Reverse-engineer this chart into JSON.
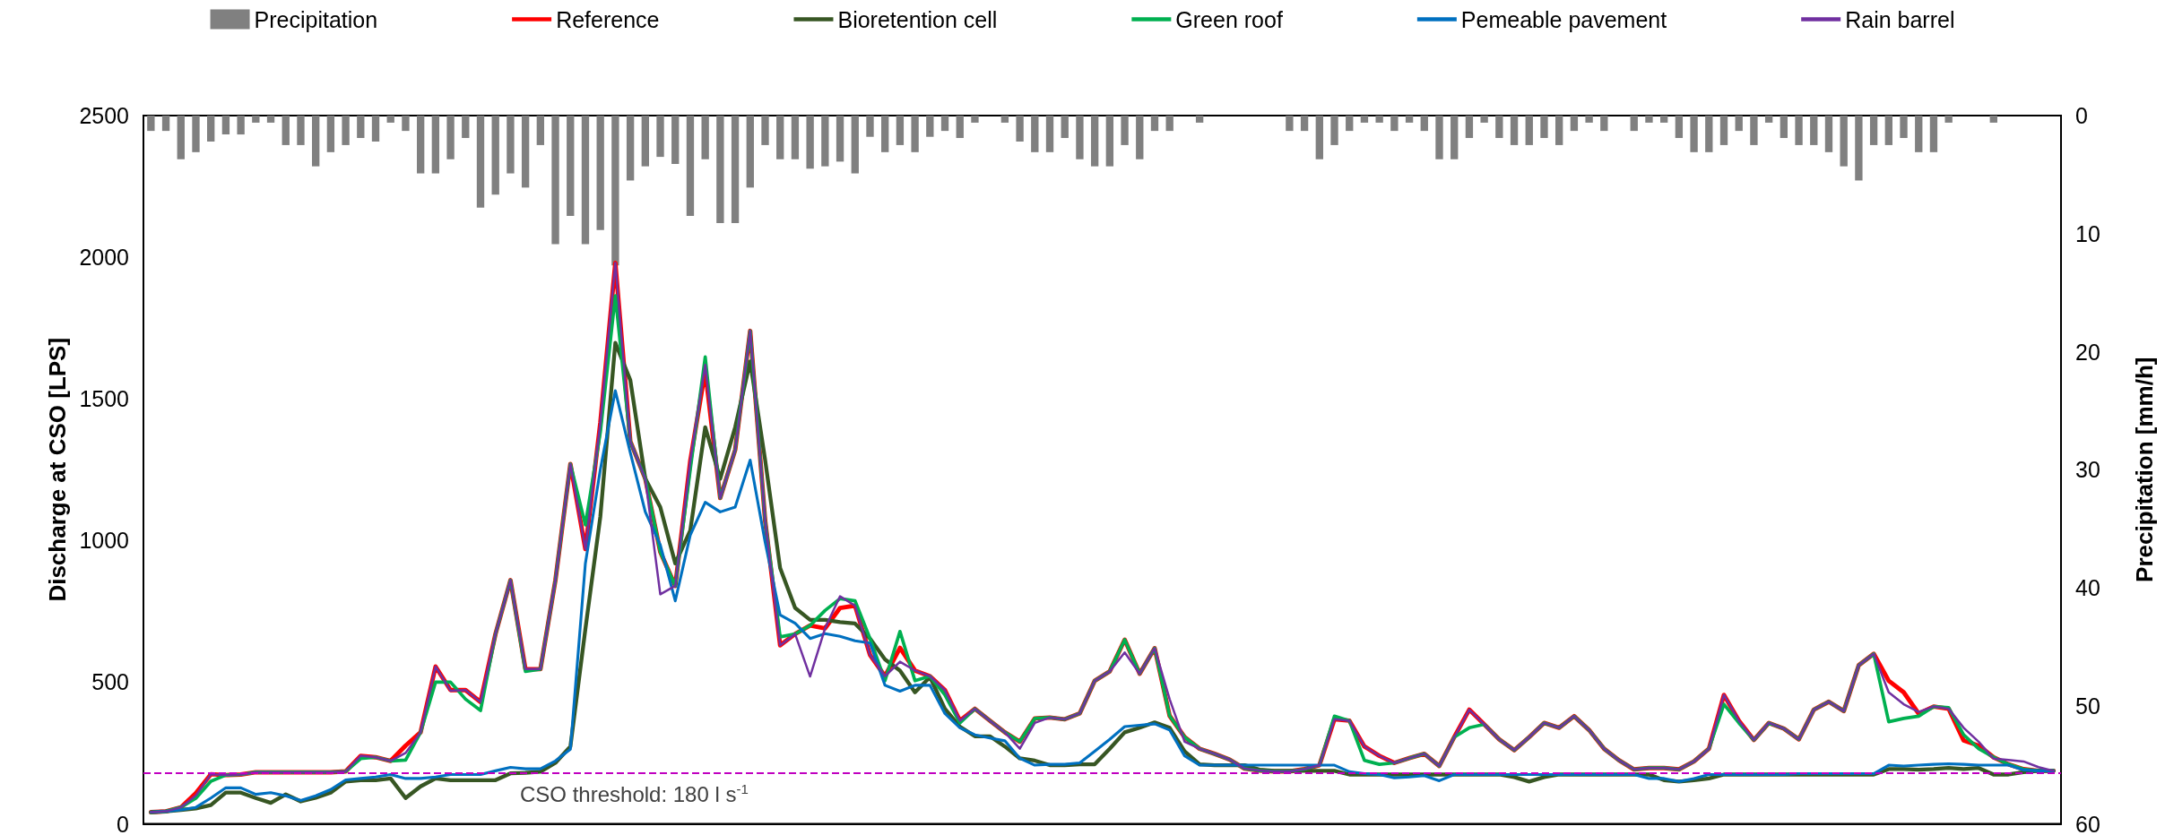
{
  "chart_data": {
    "type": "line",
    "ylabel": "Discharge at CSO [LPS]",
    "y2label": "Precipitation [mm/h]",
    "categories": [
      null,
      null,
      null,
      null,
      null,
      null,
      null,
      null,
      null,
      null,
      null,
      null,
      null,
      null,
      null,
      null,
      null,
      null,
      null,
      null,
      null,
      null,
      null,
      null,
      null,
      null,
      null,
      null,
      null,
      null,
      null,
      null,
      null,
      null,
      null,
      null,
      null,
      null,
      null,
      null,
      null,
      null,
      null,
      null,
      null,
      null,
      null,
      null,
      null,
      null,
      null,
      null,
      null,
      null,
      null,
      null,
      null,
      null,
      null,
      null,
      null,
      null,
      null,
      null,
      null,
      null,
      null,
      null,
      null,
      null,
      null,
      null,
      null,
      null,
      null,
      null,
      null,
      null,
      null,
      null,
      null,
      null,
      null,
      null,
      null,
      null,
      null,
      null,
      null,
      null,
      null,
      null,
      null,
      null,
      null,
      null,
      null,
      null,
      null,
      null,
      null,
      null,
      null,
      null,
      null,
      null,
      null,
      null,
      null,
      null,
      null,
      null,
      null,
      null,
      null,
      null,
      null,
      null,
      null,
      null,
      null,
      null,
      null,
      null,
      null,
      null,
      null,
      null
    ],
    "ylim": [
      0,
      2500
    ],
    "yticks": [
      0,
      500,
      1000,
      1500,
      2000,
      2500
    ],
    "y2lim": [
      60,
      0
    ],
    "y2ticks": [
      0,
      10,
      20,
      30,
      40,
      50,
      60
    ],
    "grid": false,
    "legend": "top",
    "marker": "none",
    "line_style": "solid",
    "ref_lines": [
      {
        "axis": "y",
        "value": 180,
        "label": "CSO threshold: 180 l s$^{-1}$",
        "color": "#c000c0",
        "line_style": "dashed"
      }
    ],
    "series": [
      {
        "name": "Precipitation",
        "type": "bar",
        "axis": "y2",
        "color": "#808080",
        "values": [
          1.3,
          1.3,
          3.7,
          3.1,
          2.2,
          1.6,
          1.6,
          0.6,
          0.6,
          2.5,
          2.5,
          4.3,
          3.1,
          2.5,
          1.9,
          2.2,
          0.6,
          1.3,
          4.9,
          4.9,
          3.7,
          1.9,
          7.8,
          6.7,
          4.9,
          6.1,
          2.5,
          10.9,
          8.5,
          10.9,
          9.7,
          12.7,
          5.5,
          4.3,
          3.5,
          4.1,
          8.5,
          3.7,
          9.1,
          9.1,
          6.1,
          2.5,
          3.7,
          3.7,
          4.5,
          4.3,
          3.9,
          4.9,
          1.8,
          3.1,
          2.5,
          3.1,
          1.8,
          1.3,
          1.9,
          0.6,
          null,
          0.6,
          2.2,
          3.1,
          3.1,
          1.9,
          3.7,
          4.3,
          4.3,
          2.5,
          3.7,
          1.3,
          1.3,
          null,
          0.6,
          null,
          null,
          null,
          null,
          null,
          1.3,
          1.3,
          3.7,
          2.5,
          1.3,
          0.6,
          0.6,
          1.3,
          0.6,
          1.3,
          3.7,
          3.7,
          1.9,
          0.6,
          1.9,
          2.5,
          2.5,
          1.9,
          2.5,
          1.3,
          0.6,
          1.3,
          null,
          1.3,
          0.6,
          0.6,
          1.9,
          3.1,
          3.1,
          2.5,
          1.3,
          2.5,
          0.6,
          1.9,
          2.5,
          2.5,
          3.1,
          4.3,
          5.5,
          2.5,
          2.5,
          1.9,
          3.1,
          3.1,
          0.6,
          null,
          null,
          0.6,
          null,
          null,
          null,
          null
        ]
      },
      {
        "name": "Reference",
        "color": "#ff0000",
        "values": [
          41,
          44,
          58,
          108,
          175,
          172,
          174,
          182,
          182,
          182,
          182,
          182,
          182,
          185,
          240,
          235,
          222,
          276,
          323,
          555,
          472,
          472,
          430,
          670,
          860,
          546,
          546,
          860,
          1270,
          970,
          1416,
          1980,
          1350,
          1218,
          960,
          840,
          1280,
          1600,
          1150,
          1320,
          1740,
          1070,
          630,
          670,
          700,
          690,
          762,
          770,
          596,
          521,
          621,
          541,
          521,
          472,
          364,
          406,
          364,
          323,
          290,
          372,
          375,
          369,
          390,
          505,
          538,
          650,
          530,
          620,
          381,
          306,
          265,
          247,
          227,
          195,
          188,
          185,
          185,
          193,
          207,
          369,
          364,
          273,
          240,
          215,
          232,
          247,
          204,
          306,
          403,
          351,
          298,
          260,
          306,
          356,
          339,
          380,
          331,
          265,
          224,
          192,
          197,
          197,
          192,
          220,
          265,
          455,
          364,
          296,
          356,
          336,
          298,
          403,
          431,
          398,
          560,
          600,
          505,
          464,
          389,
          414,
          406,
          294,
          276,
          235,
          210,
          193,
          187,
          187
        ]
      },
      {
        "name": "Bioretention cell",
        "color": "#375623",
        "values": [
          41,
          44,
          49,
          54,
          66,
          110,
          110,
          91,
          74,
          104,
          79,
          92,
          110,
          149,
          154,
          154,
          160,
          91,
          132,
          160,
          154,
          154,
          154,
          154,
          178,
          180,
          184,
          215,
          273,
          687,
          1085,
          1698,
          1566,
          1218,
          1118,
          919,
          1035,
          1400,
          1218,
          1400,
          1632,
          1284,
          903,
          762,
          720,
          720,
          712,
          707,
          654,
          580,
          541,
          464,
          518,
          406,
          343,
          309,
          309,
          273,
          231,
          223,
          207,
          207,
          210,
          210,
          265,
          323,
          339,
          358,
          339,
          256,
          210,
          207,
          207,
          207,
          191,
          187,
          187,
          187,
          187,
          187,
          174,
          174,
          174,
          174,
          174,
          174,
          174,
          174,
          174,
          174,
          174,
          165,
          149,
          165,
          174,
          174,
          174,
          174,
          174,
          174,
          174,
          154,
          149,
          154,
          160,
          174,
          174,
          174,
          174,
          174,
          174,
          174,
          174,
          174,
          174,
          174,
          193,
          193,
          191,
          193,
          197,
          193,
          197,
          174,
          174,
          182,
          187,
          187
        ]
      },
      {
        "name": "Green roof",
        "color": "#00b050",
        "values": [
          41,
          44,
          58,
          90,
          150,
          172,
          174,
          182,
          182,
          182,
          182,
          182,
          182,
          185,
          230,
          235,
          222,
          225,
          323,
          500,
          500,
          440,
          400,
          670,
          860,
          538,
          546,
          860,
          1270,
          1055,
          1383,
          1864,
          1350,
          1218,
          960,
          840,
          1250,
          1648,
          1150,
          1320,
          1740,
          1070,
          660,
          670,
          700,
          753,
          795,
          787,
          654,
          505,
          679,
          505,
          521,
          455,
          356,
          406,
          364,
          323,
          290,
          372,
          375,
          369,
          390,
          505,
          538,
          650,
          530,
          620,
          381,
          306,
          265,
          247,
          227,
          195,
          188,
          185,
          185,
          193,
          207,
          380,
          364,
          224,
          210,
          215,
          232,
          247,
          204,
          306,
          339,
          351,
          298,
          260,
          306,
          356,
          339,
          380,
          331,
          265,
          224,
          192,
          197,
          197,
          192,
          220,
          265,
          422,
          356,
          296,
          356,
          336,
          298,
          403,
          431,
          398,
          560,
          600,
          360,
          372,
          380,
          414,
          410,
          314,
          265,
          235,
          210,
          193,
          187,
          187
        ]
      },
      {
        "name": "Pemeable pavement",
        "color": "#0070c0",
        "values": [
          41,
          44,
          49,
          58,
          91,
          127,
          127,
          104,
          110,
          99,
          82,
          99,
          121,
          155,
          160,
          165,
          174,
          160,
          160,
          165,
          174,
          174,
          174,
          187,
          199,
          194,
          194,
          222,
          263,
          919,
          1251,
          1529,
          1310,
          1101,
          985,
          787,
          1019,
          1135,
          1101,
          1118,
          1284,
          994,
          737,
          708,
          654,
          671,
          662,
          646,
          638,
          489,
          468,
          489,
          489,
          389,
          339,
          314,
          303,
          293,
          231,
          207,
          210,
          210,
          215,
          256,
          298,
          343,
          348,
          353,
          331,
          240,
          207,
          207,
          207,
          207,
          207,
          207,
          207,
          207,
          207,
          207,
          184,
          177,
          174,
          162,
          165,
          170,
          152,
          174,
          174,
          174,
          174,
          174,
          174,
          174,
          174,
          174,
          174,
          174,
          174,
          174,
          160,
          160,
          149,
          160,
          174,
          174,
          174,
          174,
          174,
          174,
          177,
          177,
          177,
          177,
          177,
          177,
          207,
          204,
          207,
          210,
          212,
          210,
          207,
          207,
          207,
          190,
          187,
          187
        ]
      },
      {
        "name": "Rain barrel",
        "color": "#7030a0",
        "values": [
          41,
          44,
          58,
          100,
          175,
          172,
          174,
          182,
          182,
          182,
          182,
          182,
          182,
          185,
          240,
          235,
          222,
          250,
          323,
          555,
          470,
          472,
          430,
          670,
          860,
          546,
          546,
          860,
          1270,
          970,
          1416,
          1980,
          1350,
          1218,
          810,
          840,
          1280,
          1620,
          1150,
          1320,
          1740,
          1070,
          630,
          670,
          520,
          690,
          803,
          770,
          596,
          521,
          572,
          541,
          521,
          472,
          364,
          406,
          364,
          323,
          265,
          356,
          375,
          369,
          390,
          505,
          538,
          605,
          530,
          620,
          440,
          290,
          265,
          247,
          227,
          195,
          188,
          185,
          185,
          193,
          207,
          369,
          364,
          273,
          240,
          215,
          232,
          247,
          204,
          306,
          403,
          351,
          298,
          260,
          306,
          356,
          339,
          380,
          331,
          265,
          224,
          192,
          197,
          197,
          192,
          220,
          265,
          455,
          364,
          296,
          356,
          336,
          298,
          403,
          431,
          398,
          560,
          600,
          464,
          422,
          395,
          414,
          406,
          339,
          290,
          230,
          225,
          220,
          200,
          187
        ]
      }
    ]
  }
}
